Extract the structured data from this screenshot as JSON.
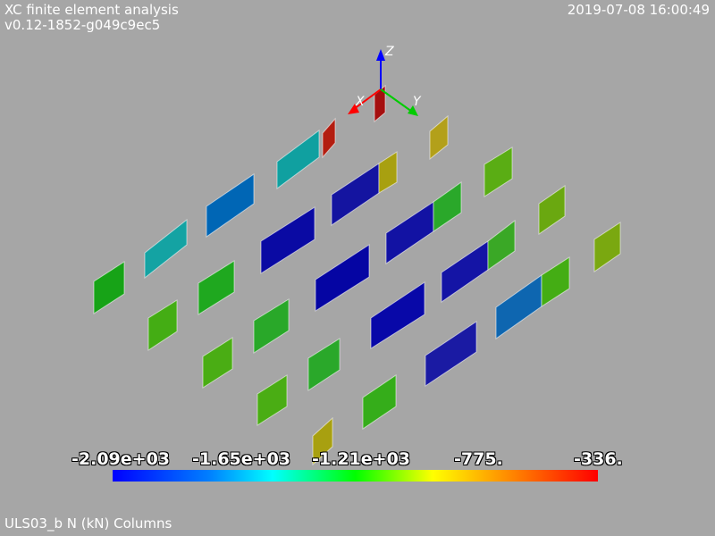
{
  "header": {
    "title": "XC finite element analysis",
    "version": "v0.12-1852-g049c9ec5",
    "timestamp": "2019-07-08 16:00:49"
  },
  "footer": {
    "caption": "ULS03_b N (kN) Columns"
  },
  "axes": {
    "x_label": "X",
    "y_label": "Y",
    "z_label": "Z",
    "x_color": "#ff0000",
    "y_color": "#00cc00",
    "z_color": "#0000ff"
  },
  "colorbar": {
    "tick_labels": [
      "-2.09e+03",
      "-1.65e+03",
      "-1.21e+03",
      "-775.",
      "-336."
    ],
    "min": -2090,
    "max": -336,
    "colormap": "rainbow blue-to-red"
  },
  "colors": {
    "background": "#a6a6a6",
    "text": "#ffffff"
  }
}
